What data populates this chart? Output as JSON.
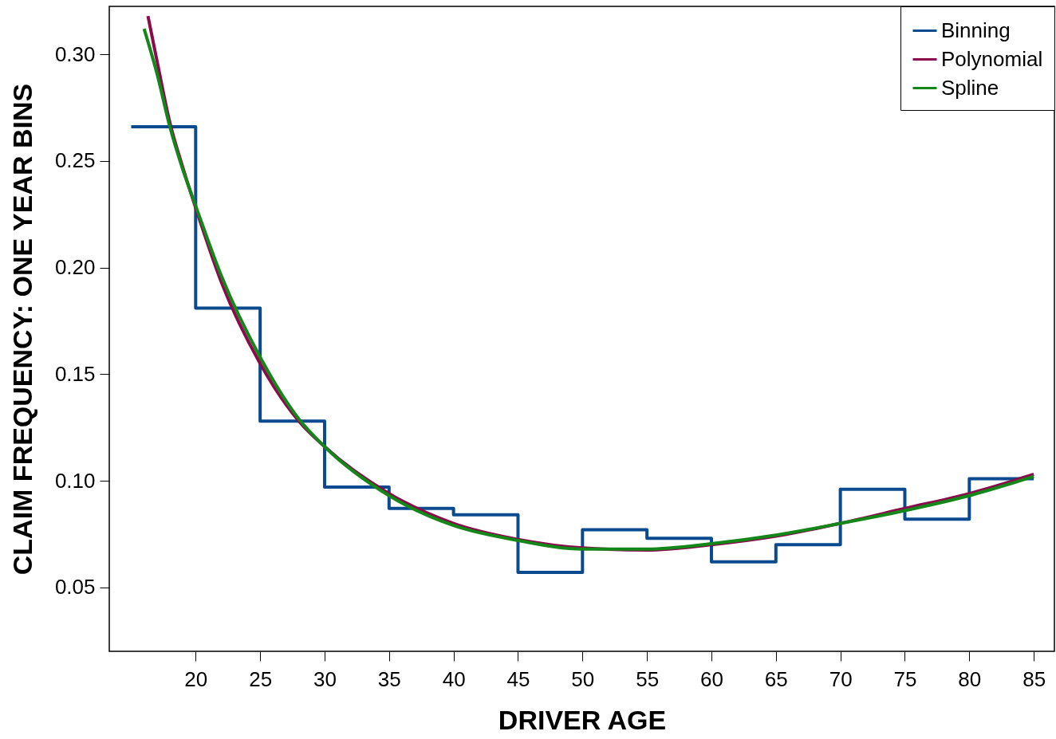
{
  "chart_data": {
    "type": "line",
    "xlabel": "DRIVER AGE",
    "ylabel": "CLAIM FREQUENCY: ONE YEAR BINS",
    "xlim": [
      13.3,
      86.6
    ],
    "ylim": [
      0.02,
      0.3225
    ],
    "xticks": [
      20,
      25,
      30,
      35,
      40,
      45,
      50,
      55,
      60,
      65,
      70,
      75,
      80,
      85
    ],
    "yticks": [
      {
        "value": 0.05,
        "label": "0.05"
      },
      {
        "value": 0.1,
        "label": "0.10"
      },
      {
        "value": 0.15,
        "label": "0.15"
      },
      {
        "value": 0.2,
        "label": "0.20"
      },
      {
        "value": 0.25,
        "label": "0.25"
      },
      {
        "value": 0.3,
        "label": "0.30"
      }
    ],
    "grid": false,
    "legend": "top right",
    "series": [
      {
        "name": "Binning",
        "type": "step",
        "color": "#0b4a8f",
        "x": [
          15,
          20,
          25,
          30,
          35,
          40,
          45,
          50,
          55,
          60,
          65,
          70,
          75,
          80,
          85
        ],
        "values": [
          0.266,
          0.181,
          0.128,
          0.097,
          0.087,
          0.084,
          0.057,
          0.077,
          0.073,
          0.062,
          0.07,
          0.096,
          0.082,
          0.101,
          0.101
        ]
      },
      {
        "name": "Polynomial",
        "type": "line",
        "color": "#8b0a4b",
        "x": [
          16.3,
          17,
          18,
          19,
          20,
          22,
          25,
          28,
          30,
          35,
          40,
          45,
          50,
          55,
          60,
          65,
          70,
          75,
          80,
          85
        ],
        "values": [
          0.318,
          0.297,
          0.268,
          0.247,
          0.228,
          0.193,
          0.155,
          0.128,
          0.116,
          0.094,
          0.08,
          0.0725,
          0.0685,
          0.0675,
          0.07,
          0.074,
          0.08,
          0.087,
          0.094,
          0.103
        ]
      },
      {
        "name": "Spline",
        "type": "line",
        "color": "#14871a",
        "x": [
          16,
          17,
          18,
          19,
          20,
          22,
          25,
          28,
          30,
          35,
          40,
          45,
          50,
          55,
          60,
          65,
          70,
          75,
          80,
          85
        ],
        "values": [
          0.312,
          0.291,
          0.266,
          0.246,
          0.229,
          0.196,
          0.158,
          0.129,
          0.116,
          0.093,
          0.079,
          0.072,
          0.068,
          0.068,
          0.0705,
          0.0745,
          0.08,
          0.086,
          0.093,
          0.102
        ]
      }
    ]
  }
}
